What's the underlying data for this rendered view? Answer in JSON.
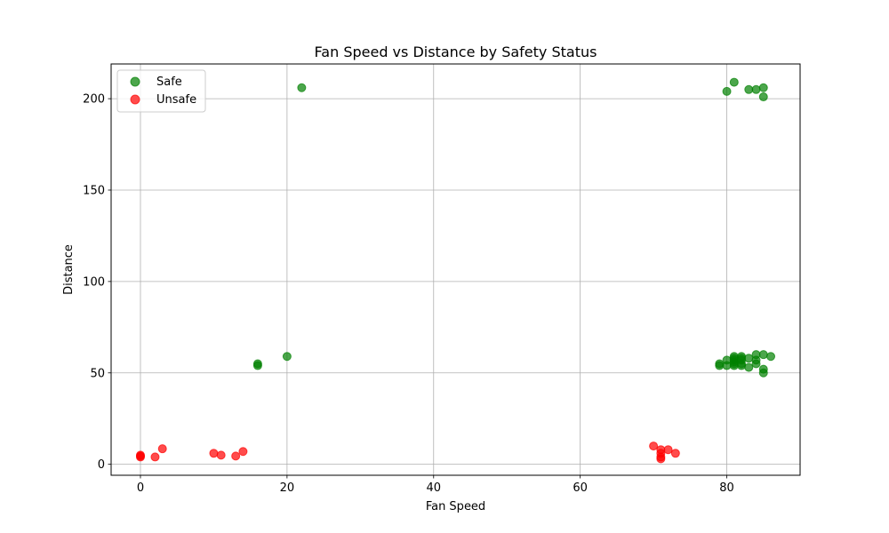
{
  "chart_data": {
    "type": "scatter",
    "title": "Fan Speed vs Distance by Safety Status",
    "xlabel": "Fan Speed",
    "ylabel": "Distance",
    "xlim": [
      -4,
      90
    ],
    "ylim": [
      -6,
      219
    ],
    "xticks": [
      0,
      20,
      40,
      60,
      80
    ],
    "yticks": [
      0,
      50,
      100,
      150,
      200
    ],
    "grid": true,
    "legend_position": "top-left",
    "series": [
      {
        "name": "Safe",
        "color": "#008000",
        "points": [
          {
            "x": 16,
            "y": 54
          },
          {
            "x": 16,
            "y": 55
          },
          {
            "x": 20,
            "y": 59
          },
          {
            "x": 22,
            "y": 206
          },
          {
            "x": 79,
            "y": 54
          },
          {
            "x": 79,
            "y": 55
          },
          {
            "x": 80,
            "y": 54
          },
          {
            "x": 80,
            "y": 57
          },
          {
            "x": 81,
            "y": 54
          },
          {
            "x": 81,
            "y": 55
          },
          {
            "x": 81,
            "y": 56
          },
          {
            "x": 81,
            "y": 57
          },
          {
            "x": 81,
            "y": 58
          },
          {
            "x": 81,
            "y": 59
          },
          {
            "x": 82,
            "y": 54
          },
          {
            "x": 82,
            "y": 55
          },
          {
            "x": 82,
            "y": 57
          },
          {
            "x": 82,
            "y": 58
          },
          {
            "x": 82,
            "y": 59
          },
          {
            "x": 83,
            "y": 53
          },
          {
            "x": 83,
            "y": 58
          },
          {
            "x": 84,
            "y": 55
          },
          {
            "x": 84,
            "y": 57
          },
          {
            "x": 84,
            "y": 60
          },
          {
            "x": 85,
            "y": 50
          },
          {
            "x": 85,
            "y": 52
          },
          {
            "x": 85,
            "y": 60
          },
          {
            "x": 86,
            "y": 59
          },
          {
            "x": 80,
            "y": 204
          },
          {
            "x": 81,
            "y": 209
          },
          {
            "x": 83,
            "y": 205
          },
          {
            "x": 84,
            "y": 205
          },
          {
            "x": 85,
            "y": 201
          },
          {
            "x": 85,
            "y": 206
          }
        ]
      },
      {
        "name": "Unsafe",
        "color": "#ff0000",
        "points": [
          {
            "x": 0,
            "y": 4
          },
          {
            "x": 0,
            "y": 4.5
          },
          {
            "x": 0,
            "y": 5
          },
          {
            "x": 2,
            "y": 4
          },
          {
            "x": 3,
            "y": 8.5
          },
          {
            "x": 10,
            "y": 6
          },
          {
            "x": 11,
            "y": 5
          },
          {
            "x": 13,
            "y": 4.5
          },
          {
            "x": 14,
            "y": 7
          },
          {
            "x": 70,
            "y": 10
          },
          {
            "x": 71,
            "y": 3
          },
          {
            "x": 71,
            "y": 4
          },
          {
            "x": 71,
            "y": 6
          },
          {
            "x": 71,
            "y": 8
          },
          {
            "x": 72,
            "y": 8
          },
          {
            "x": 73,
            "y": 6
          }
        ]
      }
    ]
  }
}
